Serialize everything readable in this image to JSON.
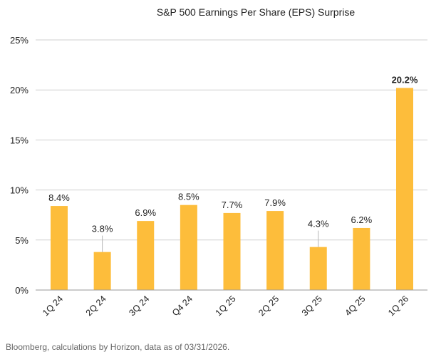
{
  "chart_data": {
    "type": "bar",
    "title": "S&P 500 Earnings Per Share (EPS) Surprise",
    "xlabel": "",
    "ylabel": "",
    "categories": [
      "1Q 24",
      "2Q 24",
      "3Q 24",
      "Q4 24",
      "1Q 25",
      "2Q 25",
      "3Q 25",
      "4Q 25",
      "1Q 26"
    ],
    "values": [
      8.4,
      3.8,
      6.9,
      8.5,
      7.7,
      7.9,
      4.3,
      6.2,
      20.2
    ],
    "data_labels": [
      "8.4%",
      "3.8%",
      "6.9%",
      "8.5%",
      "7.7%",
      "7.9%",
      "4.3%",
      "6.2%",
      "20.2%"
    ],
    "ylim": [
      0,
      25
    ],
    "yticks": [
      0,
      5,
      10,
      15,
      20,
      25
    ],
    "ytick_labels": [
      "0%",
      "5%",
      "10%",
      "15%",
      "20%",
      "25%"
    ],
    "grid": true,
    "legend": "none",
    "bar_color": "#FDBD3B",
    "highlight_label_index": 8
  },
  "source_note": "Bloomberg, calculations by Horizon, data as of 03/31/2026."
}
